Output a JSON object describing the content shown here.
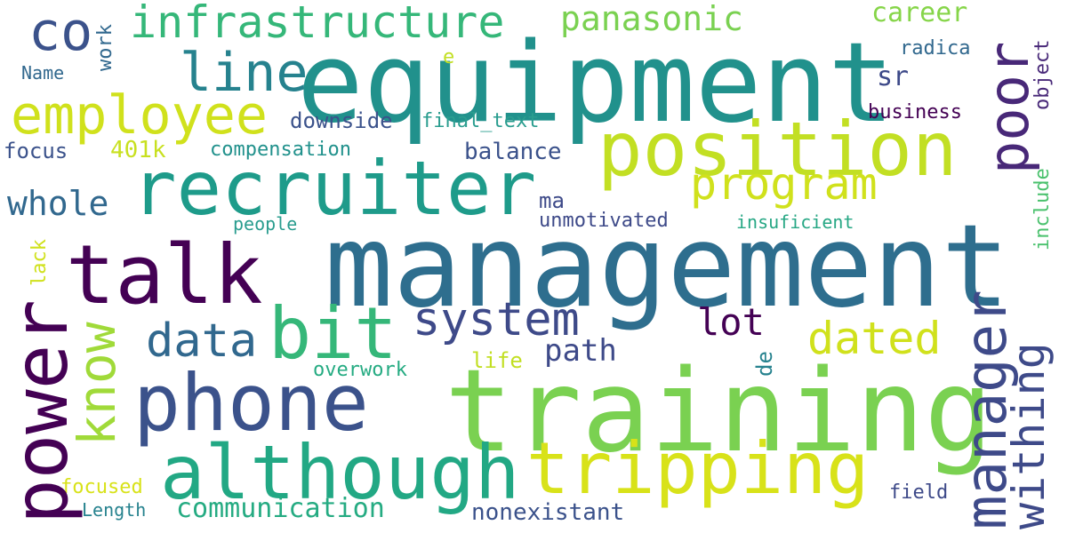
{
  "words": {
    "management": {
      "text": "management",
      "color": "#2e6e8e"
    },
    "equipment": {
      "text": "equipment",
      "color": "#21918c"
    },
    "training": {
      "text": "training",
      "color": "#7ad151"
    },
    "position": {
      "text": "position",
      "color": "#c2df23"
    },
    "recruiter": {
      "text": "recruiter",
      "color": "#1e9b8a"
    },
    "talk": {
      "text": "talk",
      "color": "#440154"
    },
    "phone": {
      "text": "phone",
      "color": "#3b528b"
    },
    "although": {
      "text": "although",
      "color": "#22a884"
    },
    "tripping": {
      "text": "tripping",
      "color": "#d8e219"
    },
    "manager": {
      "text": "manager",
      "color": "#3e4a89"
    },
    "power": {
      "text": "power",
      "color": "#440154"
    },
    "employee": {
      "text": "employee",
      "color": "#d0e11c"
    },
    "infrastructure": {
      "text": "infrastructure",
      "color": "#35b779"
    },
    "bit": {
      "text": "bit",
      "color": "#35b779"
    },
    "system": {
      "text": "system",
      "color": "#3e4a89"
    },
    "program": {
      "text": "program",
      "color": "#d0e11c"
    },
    "co": {
      "text": "co",
      "color": "#3b528b"
    },
    "line": {
      "text": "line",
      "color": "#26828e"
    },
    "poor": {
      "text": "poor",
      "color": "#482878"
    },
    "know": {
      "text": "know",
      "color": "#a0da39"
    },
    "data": {
      "text": "data",
      "color": "#31688e"
    },
    "dated": {
      "text": "dated",
      "color": "#d0e11c"
    },
    "withing": {
      "text": "withing",
      "color": "#3e4a89"
    },
    "panasonic": {
      "text": "panasonic",
      "color": "#7ad151"
    },
    "career": {
      "text": "career",
      "color": "#86d549"
    },
    "lot": {
      "text": "lot",
      "color": "#440154"
    },
    "whole": {
      "text": "whole",
      "color": "#31688e"
    },
    "communication": {
      "text": "communication",
      "color": "#25ab82"
    },
    "path": {
      "text": "path",
      "color": "#3e4a89"
    },
    "nonexistant": {
      "text": "nonexistant",
      "color": "#3b528b"
    },
    "balance": {
      "text": "balance",
      "color": "#3b528b"
    },
    "sr": {
      "text": "sr",
      "color": "#3e4a89"
    },
    "downside": {
      "text": "downside",
      "color": "#3b528b"
    },
    "focus": {
      "text": "focus",
      "color": "#3b528b"
    },
    "401k": {
      "text": "401k",
      "color": "#c8e020"
    },
    "compensation": {
      "text": "compensation",
      "color": "#21918c"
    },
    "final_text": {
      "text": "final_text",
      "color": "#2a9d8f"
    },
    "business": {
      "text": "business",
      "color": "#440154"
    },
    "radica": {
      "text": "radica",
      "color": "#31688e"
    },
    "object": {
      "text": "object",
      "color": "#482878"
    },
    "include": {
      "text": "include",
      "color": "#4ac16d"
    },
    "unmotivated": {
      "text": "unmotivated",
      "color": "#3e4a89"
    },
    "insuficient": {
      "text": "insuficient",
      "color": "#26a784"
    },
    "people": {
      "text": "people",
      "color": "#2a9d8f"
    },
    "overwork": {
      "text": "overwork",
      "color": "#25ab82"
    },
    "life": {
      "text": "life",
      "color": "#c2df23"
    },
    "lack": {
      "text": "lack",
      "color": "#d0e11c"
    },
    "focused": {
      "text": "focused",
      "color": "#d8e219"
    },
    "length": {
      "text": "Length",
      "color": "#26828e"
    },
    "field": {
      "text": "field",
      "color": "#3e4a89"
    },
    "name": {
      "text": "Name",
      "color": "#31688e"
    },
    "work": {
      "text": "work",
      "color": "#31688e"
    },
    "ma": {
      "text": "ma",
      "color": "#3e4a89"
    },
    "de": {
      "text": "de",
      "color": "#26828e"
    },
    "e": {
      "text": "e",
      "color": "#c2df23"
    }
  }
}
